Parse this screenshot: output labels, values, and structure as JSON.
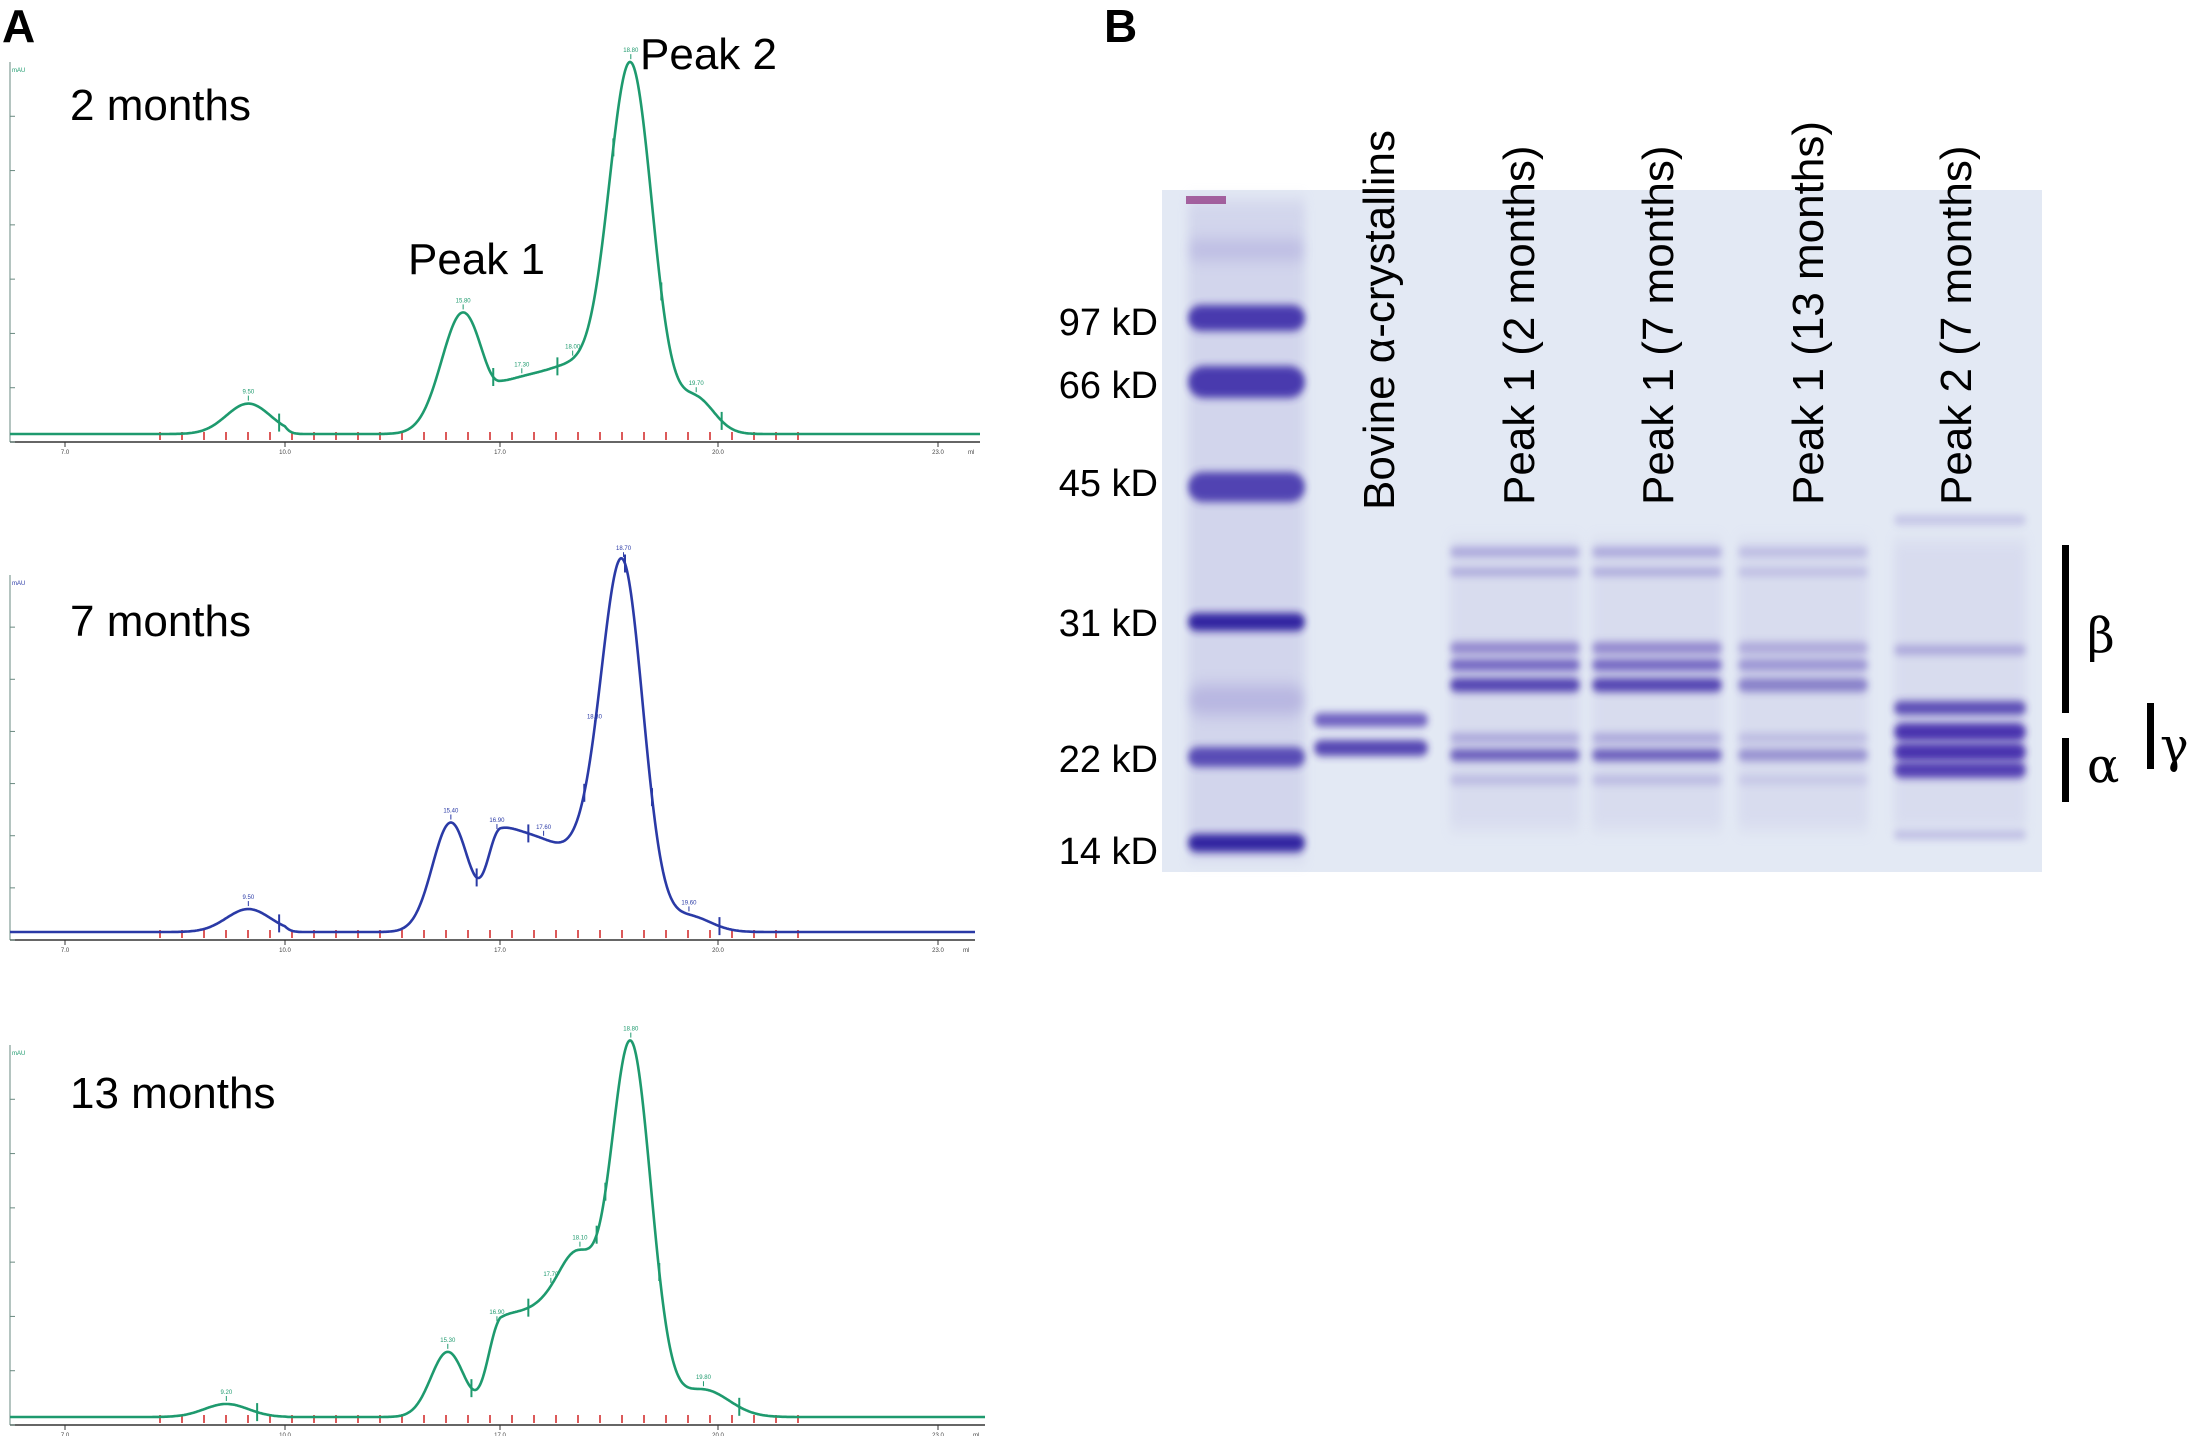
{
  "figure": {
    "panel_a_label": "A",
    "panel_b_label": "B"
  },
  "chart_data": [
    {
      "type": "line",
      "panel": "A",
      "label": "2 months",
      "color": "#1e9a6e",
      "xlim": [
        7.0,
        23.0
      ],
      "x_ticks": [
        "7.0",
        "10.0",
        "17.0",
        "20.0",
        "23.0"
      ],
      "x_unit": "ml",
      "ylim": [
        0,
        350
      ],
      "y_unit": "mAU",
      "peak_labels": [
        {
          "text": "Peak 1",
          "x": 15.8
        },
        {
          "text": "Peak 2",
          "x": 18.8
        }
      ],
      "peaks": [
        {
          "x": 9.5,
          "height": 28,
          "width": 0.3
        },
        {
          "x": 15.8,
          "height": 112,
          "width": 0.7
        },
        {
          "x": 17.3,
          "height": 30,
          "width": 0.35
        },
        {
          "x": 18.0,
          "height": 55,
          "width": 0.4
        },
        {
          "x": 18.8,
          "height": 335,
          "width": 0.3
        },
        {
          "x": 19.7,
          "height": 32,
          "width": 0.25
        }
      ],
      "baseline": 10
    },
    {
      "type": "line",
      "panel": "A",
      "label": "7 months",
      "color": "#2a3aa6",
      "xlim": [
        7.0,
        23.0
      ],
      "x_ticks": [
        "7.0",
        "10.0",
        "17.0",
        "20.0",
        "23.0"
      ],
      "x_unit": "ml",
      "ylim": [
        0,
        350
      ],
      "y_unit": "mAU",
      "peaks": [
        {
          "x": 9.5,
          "height": 22,
          "width": 0.3
        },
        {
          "x": 15.4,
          "height": 105,
          "width": 0.6
        },
        {
          "x": 16.9,
          "height": 75,
          "width": 0.35
        },
        {
          "x": 17.6,
          "height": 75,
          "width": 0.4
        },
        {
          "x": 18.3,
          "height": 60,
          "width": 0.3
        },
        {
          "x": 18.7,
          "height": 330,
          "width": 0.28
        },
        {
          "x": 19.6,
          "height": 15,
          "width": 0.3
        }
      ],
      "baseline": 6
    },
    {
      "type": "line",
      "panel": "A",
      "label": "13 months",
      "color": "#1e9a6e",
      "xlim": [
        7.0,
        23.0
      ],
      "x_ticks": [
        "7.0",
        "10.0",
        "17.0",
        "20.0",
        "23.0"
      ],
      "x_unit": "ml",
      "ylim": [
        0,
        350
      ],
      "y_unit": "mAU",
      "peaks": [
        {
          "x": 9.2,
          "height": 12,
          "width": 0.3
        },
        {
          "x": 15.3,
          "height": 60,
          "width": 0.55
        },
        {
          "x": 16.9,
          "height": 65,
          "width": 0.35
        },
        {
          "x": 17.7,
          "height": 95,
          "width": 0.45
        },
        {
          "x": 18.1,
          "height": 75,
          "width": 0.25
        },
        {
          "x": 18.8,
          "height": 340,
          "width": 0.28
        },
        {
          "x": 19.8,
          "height": 25,
          "width": 0.35
        }
      ],
      "baseline": 4
    },
    {
      "type": "gel",
      "panel": "B",
      "marker_labels": [
        "97 kD",
        "66 kD",
        "45 kD",
        "31 kD",
        "22 kD",
        "14 kD"
      ],
      "lanes": [
        "Bovine α-crystallins",
        "Peak 1 (2 months)",
        "Peak 1 (7 months)",
        "Peak 1 (13 months)",
        "Peak 2 (7 months)"
      ],
      "bracket_labels": [
        "β",
        "α",
        "γ"
      ]
    }
  ]
}
